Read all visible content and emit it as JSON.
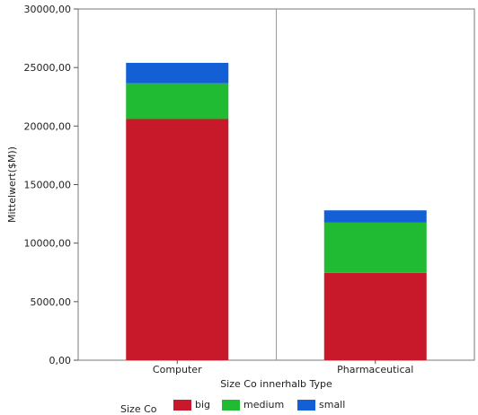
{
  "chart_data": {
    "type": "bar",
    "stacked": true,
    "categories": [
      "Computer",
      "Pharmaceutical"
    ],
    "series": [
      {
        "name": "big",
        "color": "#C8192A",
        "values": [
          20600,
          7450
        ]
      },
      {
        "name": "medium",
        "color": "#21BA33",
        "values": [
          3050,
          4300
        ]
      },
      {
        "name": "small",
        "color": "#1360D6",
        "values": [
          1750,
          1050
        ]
      }
    ],
    "ylim": [
      0,
      30000
    ],
    "yticks": [
      "0,00",
      "5000,00",
      "10000,00",
      "15000,00",
      "20000,00",
      "25000,00",
      "30000,00"
    ],
    "ylabel": "Mittelwert($M))",
    "xlabel": "Size Co innerhalb Type",
    "legend_title": "Size Co",
    "legend_position": "bottom",
    "grid": false
  }
}
